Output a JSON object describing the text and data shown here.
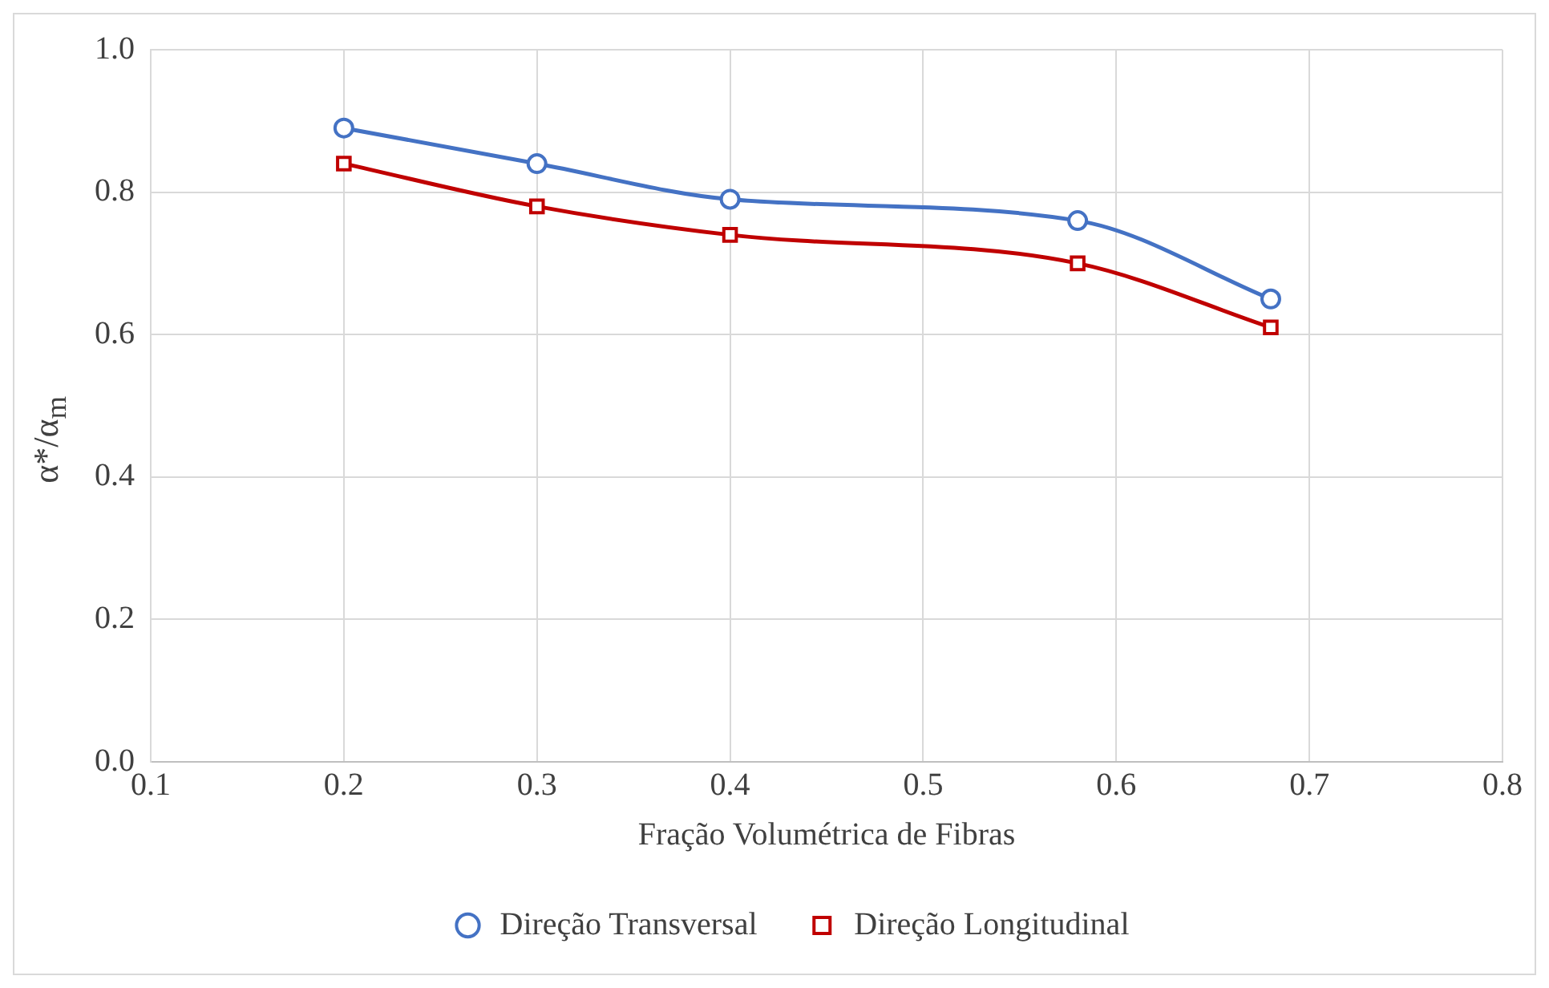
{
  "chart_data": {
    "type": "line",
    "xlabel": "Fração Volumétrica de Fibras",
    "ylabel": "α*/α$_{m}$",
    "x": [
      0.2,
      0.3,
      0.4,
      0.58,
      0.68
    ],
    "series": [
      {
        "name": "Direção Transversal",
        "color": "#4472c4",
        "marker": "circle",
        "values": [
          0.89,
          0.84,
          0.79,
          0.76,
          0.65
        ]
      },
      {
        "name": "Direção Longitudinal",
        "color": "#c00000",
        "marker": "square",
        "values": [
          0.84,
          0.78,
          0.74,
          0.7,
          0.61
        ]
      }
    ],
    "xlim": [
      0.1,
      0.8
    ],
    "xticks": [
      0.1,
      0.2,
      0.3,
      0.4,
      0.5,
      0.6,
      0.7,
      0.8
    ],
    "ylim": [
      0,
      1
    ],
    "yticks": [
      {
        "value": 0,
        "label": "0.0"
      },
      0.2,
      0.4,
      0.6,
      0.8,
      {
        "value": 1,
        "label": "1.0"
      }
    ],
    "grid": true,
    "legend": "bottom",
    "line_style": "solid"
  }
}
